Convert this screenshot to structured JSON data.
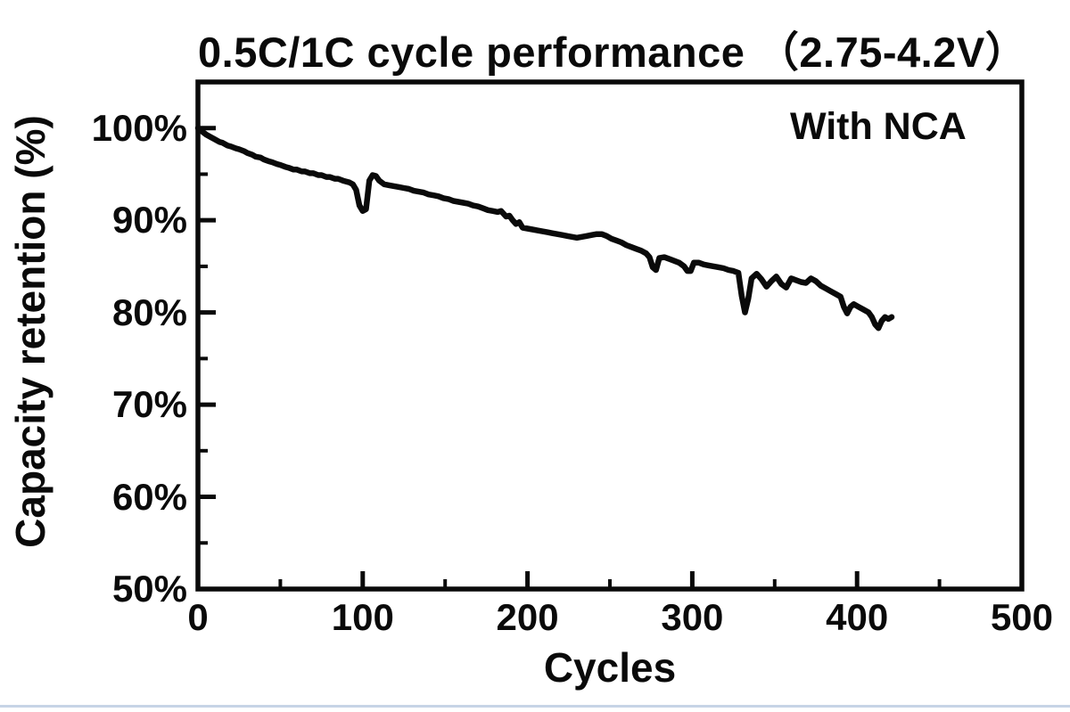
{
  "page": {
    "background_color": "#ffffff",
    "separator_color": "#c7d4e6"
  },
  "chart_data": {
    "type": "line",
    "title": "0.5C/1C cycle performance （2.75-4.2V）",
    "xlabel": "Cycles",
    "ylabel": "Capacity retention (%)",
    "annotation": "With NCA",
    "grid": false,
    "legend": "none",
    "xlim": [
      0,
      500
    ],
    "ylim": [
      50,
      105
    ],
    "x_major_ticks": [
      0,
      100,
      200,
      300,
      400,
      500
    ],
    "x_tick_labels": [
      "0",
      "100",
      "200",
      "300",
      "400",
      "500"
    ],
    "x_minor_ticks": [
      50,
      150,
      250,
      350,
      450
    ],
    "y_major_ticks": [
      100,
      90,
      80,
      70,
      60,
      50
    ],
    "y_tick_labels": [
      "100%",
      "90%",
      "80%",
      "70%",
      "60%",
      "50%"
    ],
    "y_minor_ticks": [
      95,
      85,
      75,
      65,
      55
    ],
    "axis_color": "#0a0a0a",
    "series": [
      {
        "name": "With NCA",
        "color": "#0a0a0a",
        "points": [
          [
            0,
            100.0
          ],
          [
            2,
            99.7
          ],
          [
            5,
            99.3
          ],
          [
            8,
            99.0
          ],
          [
            10,
            98.8
          ],
          [
            13,
            98.5
          ],
          [
            15,
            98.4
          ],
          [
            18,
            98.1
          ],
          [
            20,
            98.0
          ],
          [
            23,
            97.8
          ],
          [
            25,
            97.7
          ],
          [
            28,
            97.5
          ],
          [
            30,
            97.3
          ],
          [
            33,
            97.1
          ],
          [
            35,
            96.9
          ],
          [
            38,
            96.8
          ],
          [
            40,
            96.6
          ],
          [
            43,
            96.4
          ],
          [
            45,
            96.3
          ],
          [
            48,
            96.1
          ],
          [
            50,
            96.0
          ],
          [
            53,
            95.8
          ],
          [
            55,
            95.7
          ],
          [
            58,
            95.5
          ],
          [
            60,
            95.5
          ],
          [
            63,
            95.3
          ],
          [
            65,
            95.3
          ],
          [
            68,
            95.1
          ],
          [
            70,
            95.1
          ],
          [
            73,
            94.9
          ],
          [
            75,
            94.9
          ],
          [
            78,
            94.7
          ],
          [
            80,
            94.7
          ],
          [
            83,
            94.5
          ],
          [
            85,
            94.5
          ],
          [
            88,
            94.3
          ],
          [
            90,
            94.2
          ],
          [
            92,
            94.1
          ],
          [
            94,
            93.9
          ],
          [
            96,
            93.3
          ],
          [
            98,
            91.6
          ],
          [
            100,
            91.0
          ],
          [
            102,
            91.2
          ],
          [
            104,
            94.3
          ],
          [
            106,
            94.9
          ],
          [
            108,
            94.8
          ],
          [
            110,
            94.3
          ],
          [
            113,
            93.9
          ],
          [
            116,
            93.8
          ],
          [
            119,
            93.7
          ],
          [
            122,
            93.6
          ],
          [
            125,
            93.5
          ],
          [
            128,
            93.4
          ],
          [
            131,
            93.2
          ],
          [
            134,
            93.1
          ],
          [
            137,
            93.0
          ],
          [
            140,
            92.8
          ],
          [
            143,
            92.7
          ],
          [
            146,
            92.6
          ],
          [
            149,
            92.4
          ],
          [
            152,
            92.3
          ],
          [
            155,
            92.1
          ],
          [
            158,
            92.0
          ],
          [
            161,
            91.9
          ],
          [
            164,
            91.8
          ],
          [
            167,
            91.6
          ],
          [
            170,
            91.5
          ],
          [
            173,
            91.3
          ],
          [
            176,
            91.1
          ],
          [
            179,
            91.0
          ],
          [
            182,
            90.9
          ],
          [
            184,
            91.0
          ],
          [
            187,
            90.4
          ],
          [
            189,
            90.5
          ],
          [
            191,
            90.0
          ],
          [
            193,
            89.6
          ],
          [
            195,
            89.8
          ],
          [
            197,
            89.2
          ],
          [
            200,
            89.1
          ],
          [
            203,
            89.0
          ],
          [
            206,
            88.9
          ],
          [
            209,
            88.8
          ],
          [
            212,
            88.7
          ],
          [
            215,
            88.6
          ],
          [
            218,
            88.5
          ],
          [
            221,
            88.4
          ],
          [
            224,
            88.3
          ],
          [
            227,
            88.2
          ],
          [
            230,
            88.1
          ],
          [
            233,
            88.2
          ],
          [
            236,
            88.3
          ],
          [
            239,
            88.4
          ],
          [
            242,
            88.5
          ],
          [
            245,
            88.5
          ],
          [
            248,
            88.3
          ],
          [
            251,
            88.0
          ],
          [
            254,
            87.8
          ],
          [
            257,
            87.6
          ],
          [
            260,
            87.3
          ],
          [
            263,
            87.1
          ],
          [
            266,
            86.9
          ],
          [
            269,
            86.7
          ],
          [
            272,
            86.4
          ],
          [
            274,
            86.0
          ],
          [
            276,
            84.9
          ],
          [
            278,
            84.6
          ],
          [
            280,
            85.9
          ],
          [
            283,
            86.0
          ],
          [
            286,
            85.8
          ],
          [
            289,
            85.6
          ],
          [
            292,
            85.4
          ],
          [
            295,
            85.0
          ],
          [
            297,
            84.5
          ],
          [
            299,
            84.5
          ],
          [
            301,
            85.4
          ],
          [
            304,
            85.4
          ],
          [
            307,
            85.2
          ],
          [
            310,
            85.1
          ],
          [
            313,
            85.0
          ],
          [
            316,
            84.9
          ],
          [
            319,
            84.8
          ],
          [
            322,
            84.6
          ],
          [
            325,
            84.5
          ],
          [
            328,
            84.3
          ],
          [
            330,
            81.8
          ],
          [
            332,
            80.0
          ],
          [
            334,
            81.5
          ],
          [
            336,
            83.7
          ],
          [
            339,
            84.2
          ],
          [
            342,
            83.6
          ],
          [
            345,
            82.8
          ],
          [
            348,
            83.4
          ],
          [
            351,
            83.9
          ],
          [
            354,
            83.1
          ],
          [
            357,
            82.7
          ],
          [
            360,
            83.7
          ],
          [
            363,
            83.5
          ],
          [
            366,
            83.3
          ],
          [
            369,
            83.2
          ],
          [
            372,
            83.7
          ],
          [
            375,
            83.4
          ],
          [
            378,
            82.9
          ],
          [
            381,
            82.6
          ],
          [
            384,
            82.3
          ],
          [
            387,
            82.0
          ],
          [
            390,
            81.7
          ],
          [
            392,
            80.6
          ],
          [
            394,
            79.9
          ],
          [
            396,
            80.6
          ],
          [
            398,
            80.9
          ],
          [
            401,
            80.6
          ],
          [
            404,
            80.3
          ],
          [
            407,
            80.0
          ],
          [
            409,
            79.5
          ],
          [
            411,
            78.7
          ],
          [
            413,
            78.3
          ],
          [
            415,
            79.1
          ],
          [
            417,
            79.5
          ],
          [
            419,
            79.3
          ],
          [
            421,
            79.5
          ]
        ]
      }
    ]
  }
}
